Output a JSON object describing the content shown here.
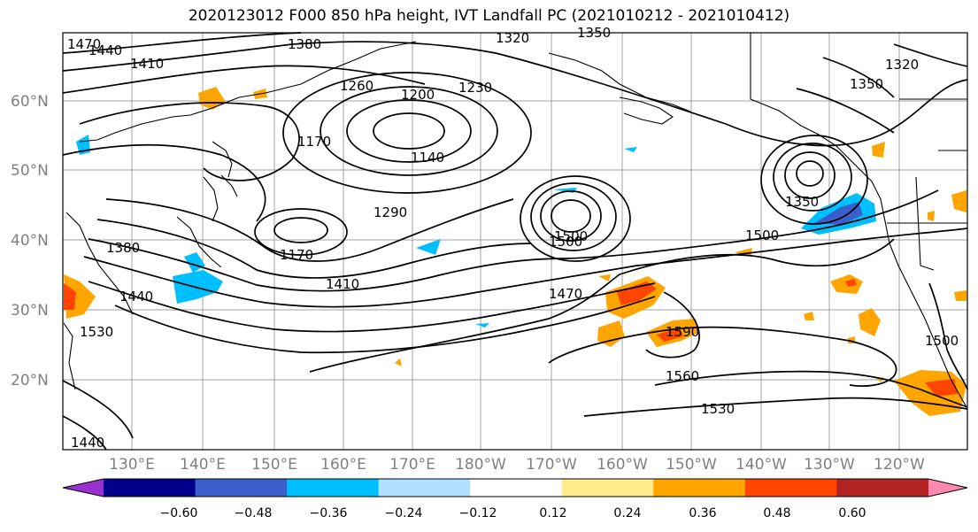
{
  "title": "2020123012 F000 850 hPa height, IVT Landfall PC (2021010212 - 2021010412)",
  "lat_labels": [
    "60°N",
    "50°N",
    "40°N",
    "30°N",
    "20°N"
  ],
  "lon_labels": [
    "130°E",
    "140°E",
    "150°E",
    "160°E",
    "170°E",
    "180°W",
    "170°W",
    "160°W",
    "150°W",
    "140°W",
    "130°W",
    "120°W"
  ],
  "contour_labels": [
    "1470",
    "1440",
    "1410",
    "1380",
    "1320",
    "1350",
    "1260",
    "1200",
    "1230",
    "1320",
    "1350",
    "1170",
    "1140",
    "1290",
    "1170",
    "1410",
    "1380",
    "1440",
    "1530",
    "1500",
    "1470",
    "1590",
    "1560",
    "1530",
    "1500",
    "1350",
    "1500",
    "1440",
    "1500"
  ],
  "colorbar": {
    "colors": [
      "#9b30d0",
      "#00008b",
      "#3a5fcd",
      "#00bfff",
      "#b0e2ff",
      "#ffffff",
      "#ffeb8a",
      "#ffa500",
      "#ff4500",
      "#b22222",
      "#ff88b0"
    ],
    "tick_labels": [
      "−0.60",
      "−0.48",
      "−0.36",
      "−0.24",
      "−0.12",
      "0.12",
      "0.24",
      "0.36",
      "0.48",
      "0.60"
    ]
  },
  "colors": {
    "contour": "#000000",
    "grid": "#a0a0a0",
    "land_outline": "#000000"
  }
}
